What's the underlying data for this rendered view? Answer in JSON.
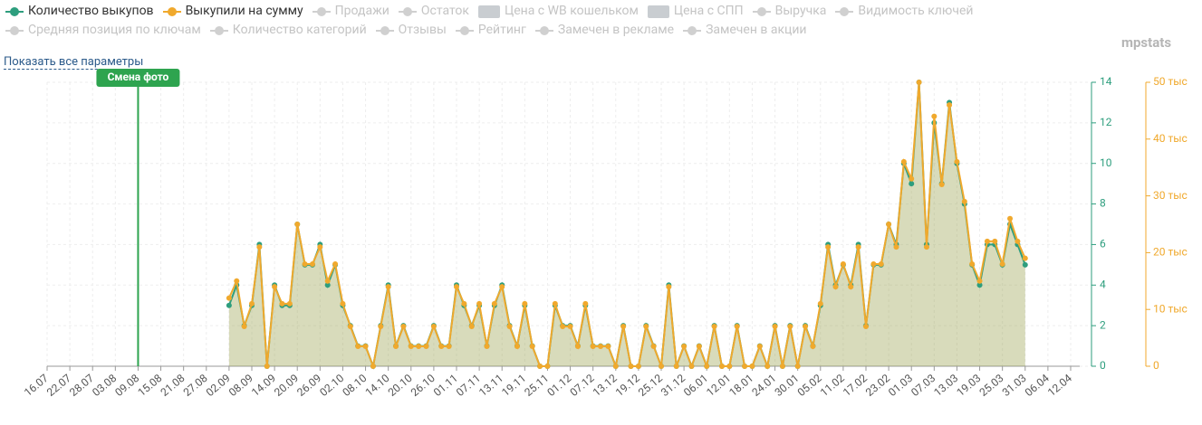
{
  "chart_data": {
    "type": "line",
    "x": [
      48,
      50,
      52,
      54,
      56,
      58,
      60,
      62,
      64,
      66,
      68,
      70,
      72,
      74,
      76,
      78,
      80,
      82,
      84,
      86,
      88,
      90,
      92,
      94,
      96,
      98,
      100,
      102,
      104,
      106,
      108,
      110,
      112,
      114,
      116,
      118,
      120,
      122,
      124,
      126,
      128,
      130,
      132,
      134,
      136,
      138,
      140,
      142,
      144,
      146,
      148,
      150,
      152,
      154,
      156,
      158,
      160,
      162,
      164,
      166,
      168,
      170,
      172,
      174,
      176,
      178,
      180,
      182,
      184,
      186,
      188,
      190,
      192,
      194,
      196,
      198,
      200,
      202,
      204,
      206,
      208,
      210,
      212,
      214,
      216,
      218,
      220,
      222,
      224,
      226,
      228,
      230,
      232,
      234,
      236,
      238,
      240,
      242,
      244,
      246,
      248,
      250,
      252,
      254,
      256,
      258
    ],
    "series": [
      {
        "name": "Количество выкупов",
        "color": "#2e9e7e",
        "values": [
          3,
          4,
          2,
          3,
          6,
          0,
          4,
          3,
          3,
          7,
          5,
          5,
          6,
          4,
          5,
          3,
          2,
          1,
          1,
          0,
          2,
          4,
          1,
          2,
          1,
          1,
          1,
          2,
          1,
          1,
          4,
          3,
          2,
          3,
          1,
          3,
          4,
          2,
          1,
          3,
          1,
          0,
          0,
          3,
          2,
          2,
          1,
          3,
          1,
          1,
          1,
          0,
          2,
          0,
          0,
          2,
          1,
          0,
          4,
          0,
          1,
          0,
          1,
          0,
          2,
          0,
          0,
          2,
          0,
          0,
          1,
          0,
          2,
          0,
          2,
          0,
          2,
          1,
          3,
          6,
          4,
          5,
          4,
          6,
          2,
          5,
          5,
          7,
          6,
          10,
          9,
          14,
          6,
          12,
          9,
          13,
          10,
          8,
          5,
          4,
          6,
          6,
          5,
          7,
          6,
          5
        ]
      },
      {
        "name": "Выкупили на сумму",
        "color": "#f0a92d",
        "axis": "y2",
        "values": [
          12,
          15,
          7,
          11,
          21,
          0,
          14,
          11,
          11,
          25,
          18,
          18,
          21,
          15,
          18,
          11,
          7,
          3.5,
          3.5,
          0,
          7,
          14,
          3.5,
          7,
          3.5,
          3.5,
          3.5,
          7,
          3.5,
          3.5,
          14,
          11,
          7,
          11,
          3.5,
          11,
          14,
          7,
          3.5,
          11,
          3.5,
          0,
          0,
          11,
          7,
          7,
          3.5,
          11,
          3.5,
          3.5,
          3.5,
          0,
          7,
          0,
          0,
          7,
          3.5,
          0,
          14,
          0,
          3.5,
          0,
          3.5,
          0,
          7,
          0,
          0,
          7,
          0,
          0,
          3.5,
          0,
          7,
          0,
          7,
          0,
          7,
          3.5,
          11,
          21,
          14,
          18,
          14,
          21,
          7,
          18,
          18,
          25,
          21,
          36,
          33,
          50,
          21,
          44,
          32,
          46,
          36,
          29,
          18,
          15,
          22,
          22,
          18,
          26,
          22,
          19
        ]
      }
    ],
    "inactive_legend": [
      "Продажи",
      "Остаток",
      "Цена с WB кошельком",
      "Цена с СПП",
      "Выручка",
      "Видимость ключей",
      "Средняя позиция по ключам",
      "Количество категорий",
      "Отзывы",
      "Рейтинг",
      "Замечен в рекламе",
      "Замечен в акции"
    ],
    "xlim": [
      0,
      270
    ],
    "xticks": [
      {
        "value": 0,
        "label": "16.07"
      },
      {
        "value": 6,
        "label": "22.07"
      },
      {
        "value": 12,
        "label": "28.07"
      },
      {
        "value": 18,
        "label": "03.08"
      },
      {
        "value": 24,
        "label": "09.08"
      },
      {
        "value": 30,
        "label": "15.08"
      },
      {
        "value": 36,
        "label": "21.08"
      },
      {
        "value": 42,
        "label": "27.08"
      },
      {
        "value": 48,
        "label": "02.09"
      },
      {
        "value": 54,
        "label": "08.09"
      },
      {
        "value": 60,
        "label": "14.09"
      },
      {
        "value": 66,
        "label": "20.09"
      },
      {
        "value": 72,
        "label": "26.09"
      },
      {
        "value": 78,
        "label": "02.10"
      },
      {
        "value": 84,
        "label": "08.10"
      },
      {
        "value": 90,
        "label": "14.10"
      },
      {
        "value": 96,
        "label": "20.10"
      },
      {
        "value": 102,
        "label": "26.10"
      },
      {
        "value": 108,
        "label": "01.11"
      },
      {
        "value": 114,
        "label": "07.11"
      },
      {
        "value": 120,
        "label": "13.11"
      },
      {
        "value": 126,
        "label": "19.11"
      },
      {
        "value": 132,
        "label": "25.11"
      },
      {
        "value": 138,
        "label": "01.12"
      },
      {
        "value": 144,
        "label": "07.12"
      },
      {
        "value": 150,
        "label": "13.12"
      },
      {
        "value": 156,
        "label": "19.12"
      },
      {
        "value": 162,
        "label": "25.12"
      },
      {
        "value": 168,
        "label": "31.12"
      },
      {
        "value": 174,
        "label": "06.01"
      },
      {
        "value": 180,
        "label": "12.01"
      },
      {
        "value": 186,
        "label": "18.01"
      },
      {
        "value": 192,
        "label": "24.01"
      },
      {
        "value": 198,
        "label": "30.01"
      },
      {
        "value": 204,
        "label": "05.02"
      },
      {
        "value": 210,
        "label": "11.02"
      },
      {
        "value": 216,
        "label": "17.02"
      },
      {
        "value": 222,
        "label": "23.02"
      },
      {
        "value": 228,
        "label": "01.03"
      },
      {
        "value": 234,
        "label": "07.03"
      },
      {
        "value": 240,
        "label": "13.03"
      },
      {
        "value": 246,
        "label": "19.03"
      },
      {
        "value": 252,
        "label": "25.03"
      },
      {
        "value": 258,
        "label": "31.03"
      },
      {
        "value": 264,
        "label": "06.04"
      },
      {
        "value": 270,
        "label": "12.04"
      }
    ],
    "ylim": [
      0,
      14
    ],
    "yticks": [
      0,
      2,
      4,
      6,
      8,
      10,
      12,
      14
    ],
    "y2lim": [
      0,
      50
    ],
    "y2ticks": [
      0,
      {
        "value": 10,
        "label": "10 тыс"
      },
      {
        "value": 20,
        "label": "20 тыс"
      },
      {
        "value": 30,
        "label": "30 тыс"
      },
      {
        "value": 40,
        "label": "40 тыс"
      },
      {
        "value": 50,
        "label": "50 тыс"
      }
    ],
    "grid": true,
    "annotation": {
      "x": 24,
      "label": "Смена фото",
      "color": "#2ea44f"
    },
    "show_all_link": "Показать все параметры",
    "logo": "mpstats"
  }
}
